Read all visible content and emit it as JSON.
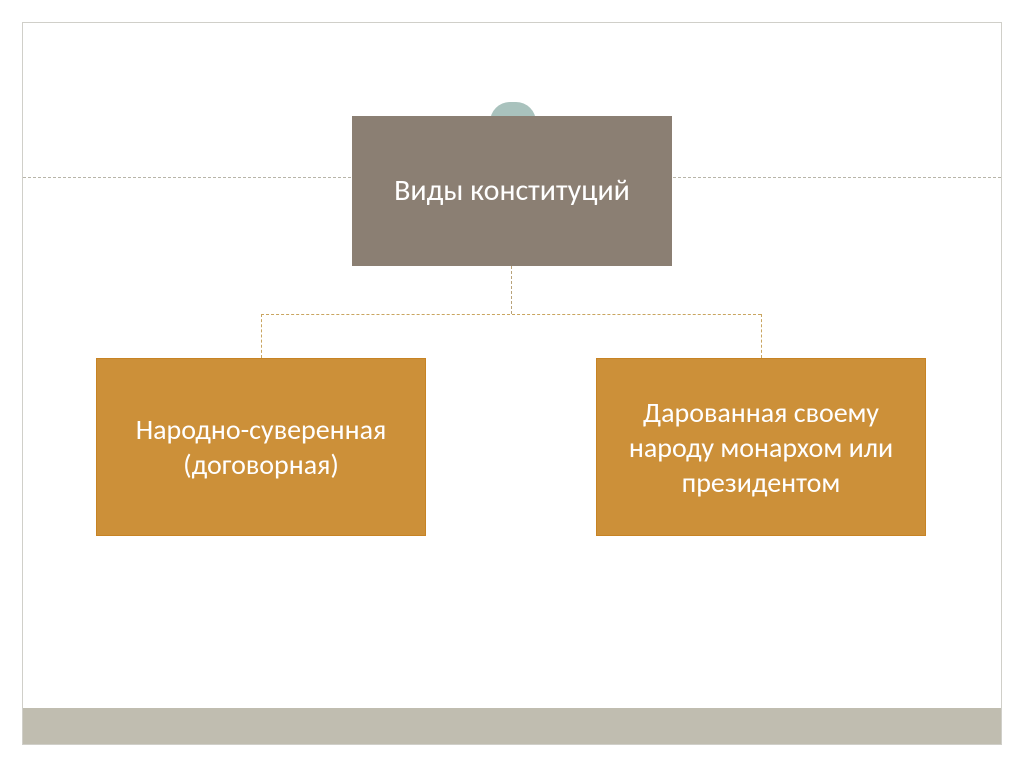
{
  "diagram": {
    "type": "tree",
    "root": {
      "label": "Виды конституций",
      "bg_color": "#8b7f73",
      "text_color": "#ffffff",
      "font_size": 30
    },
    "children": [
      {
        "label": "Народно-суверенная (договорная)",
        "bg_color": "#cc9039",
        "text_color": "#ffffff",
        "font_size": 28
      },
      {
        "label": "Дарованная своему народу монархом или президентом",
        "bg_color": "#cc9039",
        "text_color": "#ffffff",
        "font_size": 28
      }
    ],
    "connector_color": "#c9a560",
    "frame_border_color": "#d0cfc9",
    "divider_color": "#b8b5a9",
    "bottom_strip_color": "#c0bdb0",
    "tab_color": "#a9c2bd",
    "background_color": "#ffffff"
  }
}
